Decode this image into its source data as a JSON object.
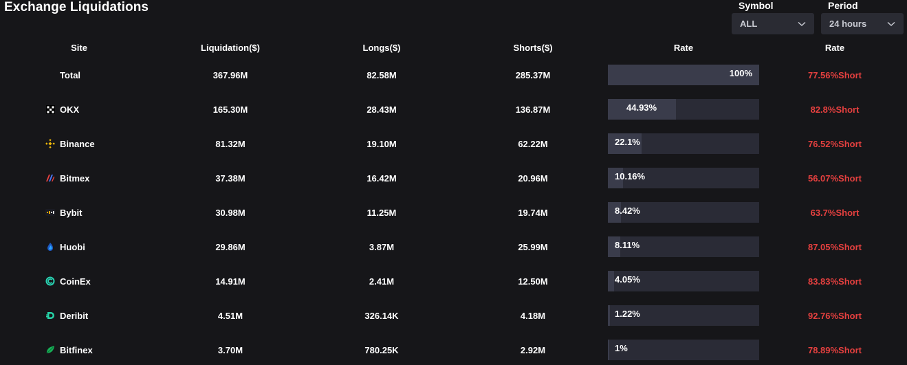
{
  "title": "Exchange Liquidations",
  "filters": {
    "symbol": {
      "label": "Symbol",
      "value": "ALL"
    },
    "period": {
      "label": "Period",
      "value": "24 hours"
    }
  },
  "columns": [
    "Site",
    "Liquidation($)",
    "Longs($)",
    "Shorts($)",
    "Rate",
    "Rate"
  ],
  "rows": [
    {
      "site": "Total",
      "icon": "",
      "liquidation": "367.96M",
      "longs": "82.58M",
      "shorts": "285.37M",
      "rate": "100%",
      "rate_value": 100,
      "short_rate": "77.56%Short"
    },
    {
      "site": "OKX",
      "icon": "okx-icon",
      "liquidation": "165.30M",
      "longs": "28.43M",
      "shorts": "136.87M",
      "rate": "44.93%",
      "rate_value": 44.93,
      "short_rate": "82.8%Short"
    },
    {
      "site": "Binance",
      "icon": "binance-icon",
      "liquidation": "81.32M",
      "longs": "19.10M",
      "shorts": "62.22M",
      "rate": "22.1%",
      "rate_value": 22.1,
      "short_rate": "76.52%Short"
    },
    {
      "site": "Bitmex",
      "icon": "bitmex-icon",
      "liquidation": "37.38M",
      "longs": "16.42M",
      "shorts": "20.96M",
      "rate": "10.16%",
      "rate_value": 10.16,
      "short_rate": "56.07%Short"
    },
    {
      "site": "Bybit",
      "icon": "bybit-icon",
      "liquidation": "30.98M",
      "longs": "11.25M",
      "shorts": "19.74M",
      "rate": "8.42%",
      "rate_value": 8.42,
      "short_rate": "63.7%Short"
    },
    {
      "site": "Huobi",
      "icon": "huobi-icon",
      "liquidation": "29.86M",
      "longs": "3.87M",
      "shorts": "25.99M",
      "rate": "8.11%",
      "rate_value": 8.11,
      "short_rate": "87.05%Short"
    },
    {
      "site": "CoinEx",
      "icon": "coinex-icon",
      "liquidation": "14.91M",
      "longs": "2.41M",
      "shorts": "12.50M",
      "rate": "4.05%",
      "rate_value": 4.05,
      "short_rate": "83.83%Short"
    },
    {
      "site": "Deribit",
      "icon": "deribit-icon",
      "liquidation": "4.51M",
      "longs": "326.14K",
      "shorts": "4.18M",
      "rate": "1.22%",
      "rate_value": 1.22,
      "short_rate": "92.76%Short"
    },
    {
      "site": "Bitfinex",
      "icon": "bitfinex-icon",
      "liquidation": "3.70M",
      "longs": "780.25K",
      "shorts": "2.92M",
      "rate": "1%",
      "rate_value": 1,
      "short_rate": "78.89%Short"
    }
  ],
  "colors": {
    "background": "#161619",
    "short": "#e5403f",
    "bar_track": "#2a2b36",
    "bar_fill": "#3a3c4b"
  }
}
